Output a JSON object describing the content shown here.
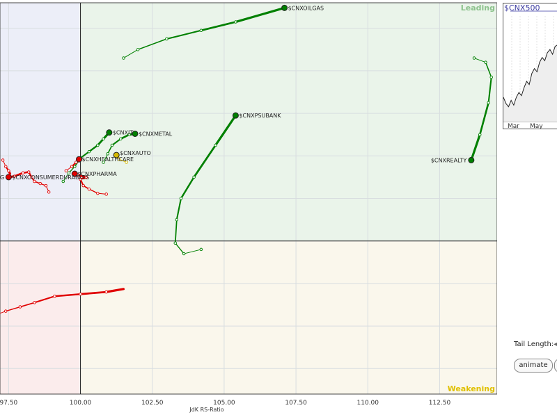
{
  "chart_data": {
    "type": "scatter",
    "subtype": "relative-rotation-graph",
    "xlabel": "JdK RS-Ratio",
    "ylabel": "",
    "x_ticks": [
      "97.50",
      "100.00",
      "102.50",
      "105.00",
      "107.50",
      "110.00",
      "112.50"
    ],
    "xlim": [
      97.2,
      114.5
    ],
    "ylim": [
      96.4,
      105.6
    ],
    "center": [
      100,
      100
    ],
    "grid": true,
    "quadrants": [
      {
        "name": "Leading",
        "color": "#8cc28c"
      },
      {
        "name": "Weakening",
        "color": "#e0c000"
      }
    ],
    "series": [
      {
        "name": "$CNXOILGAS",
        "color": "#008000",
        "x": [
          101.5,
          102.0,
          103.0,
          104.2,
          105.4,
          107.1
        ],
        "y": [
          104.3,
          104.5,
          104.75,
          104.95,
          105.15,
          105.48
        ]
      },
      {
        "name": "$CNXREALTY",
        "color": "#008000",
        "x": [
          113.7,
          114.1,
          114.3,
          114.2,
          113.9,
          113.6
        ],
        "y": [
          104.3,
          104.2,
          103.85,
          103.25,
          102.5,
          101.9
        ]
      },
      {
        "name": "$CNXPSUBANK",
        "color": "#008000",
        "x": [
          104.2,
          103.6,
          103.3,
          103.35,
          103.5,
          103.95,
          104.7,
          105.4
        ],
        "y": [
          99.8,
          99.7,
          99.95,
          100.5,
          101.0,
          101.5,
          102.25,
          102.95
        ]
      },
      {
        "name": "$CNXIT",
        "color": "#008000",
        "x": [
          99.4,
          99.6,
          99.8,
          100.0,
          100.3,
          100.6,
          100.8,
          101.0
        ],
        "y": [
          101.4,
          101.6,
          101.75,
          101.95,
          102.1,
          102.25,
          102.4,
          102.55
        ]
      },
      {
        "name": "$CNXMETAL",
        "color": "#008000",
        "x": [
          100.8,
          100.95,
          101.1,
          101.4,
          101.7,
          101.9
        ],
        "y": [
          101.85,
          102.05,
          102.25,
          102.4,
          102.5,
          102.52
        ]
      },
      {
        "name": "$CNXAUTO",
        "color": "#d4b800",
        "x": [
          101.6,
          101.35,
          101.25
        ],
        "y": [
          101.85,
          101.92,
          102.02
        ]
      },
      {
        "name": "$CNXHEALTHCARE",
        "color": "#e00000",
        "x": [
          99.5,
          99.7,
          99.85,
          99.95
        ],
        "y": [
          101.65,
          101.75,
          101.85,
          101.92
        ]
      },
      {
        "name": "$CNXPHARMA",
        "color": "#e00000",
        "x": [
          100.9,
          100.6,
          100.3,
          100.1,
          100.0,
          100.2,
          99.9,
          99.8
        ],
        "y": [
          101.1,
          101.12,
          101.22,
          101.3,
          101.45,
          101.5,
          101.55,
          101.58
        ]
      },
      {
        "name": "$CNXCONSUMERDURABLES",
        "color": "#e00000",
        "x": [
          98.9,
          98.8,
          98.6,
          98.4,
          98.3,
          98.2,
          98.0,
          97.7,
          97.5
        ],
        "y": [
          101.15,
          101.3,
          101.35,
          101.4,
          101.5,
          101.62,
          101.6,
          101.52,
          101.5
        ]
      },
      {
        "name": "",
        "color": "#e00000",
        "x": [
          96.8,
          97.4,
          97.9,
          98.4,
          99.1,
          100.0,
          100.9,
          101.5
        ],
        "y": [
          98.2,
          98.35,
          98.45,
          98.55,
          98.7,
          98.75,
          98.8,
          98.87
        ]
      },
      {
        "name": "",
        "color": "#e00000",
        "x": [
          97.3,
          97.4,
          97.5,
          97.55
        ],
        "y": [
          101.9,
          101.75,
          101.65,
          101.58
        ]
      }
    ],
    "edge_labels": [
      "G"
    ]
  },
  "sidebar": {
    "mini_chart_title": "$CNX500",
    "mini_chart_months": [
      "Mar",
      "May"
    ],
    "mini_chart_values": [
      30,
      26,
      24,
      28,
      25,
      30,
      33,
      31,
      36,
      40,
      38,
      45,
      48,
      46,
      52,
      55,
      53,
      58,
      60,
      57,
      62,
      63
    ],
    "tail_length_label": "Tail Length:",
    "animate_label": "animate"
  }
}
